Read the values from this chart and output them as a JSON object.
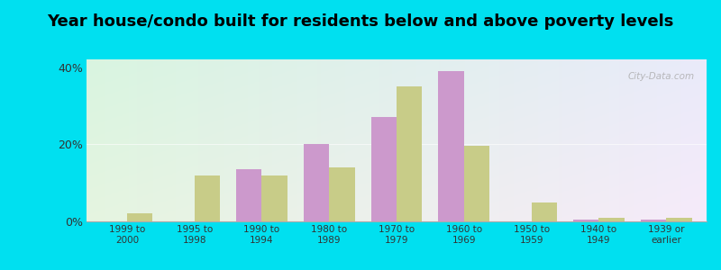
{
  "title": "Year house/condo built for residents below and above poverty levels",
  "categories": [
    "1999 to\n2000",
    "1995 to\n1998",
    "1990 to\n1994",
    "1980 to\n1989",
    "1970 to\n1979",
    "1960 to\n1969",
    "1950 to\n1959",
    "1940 to\n1949",
    "1939 or\nearlier"
  ],
  "below_poverty": [
    0.0,
    0.0,
    13.5,
    20.0,
    27.0,
    39.0,
    0.0,
    0.5,
    0.5
  ],
  "above_poverty": [
    2.0,
    12.0,
    12.0,
    14.0,
    35.0,
    19.5,
    5.0,
    1.0,
    1.0
  ],
  "below_color": "#cc99cc",
  "above_color": "#c8cc88",
  "ylim": [
    0,
    42
  ],
  "yticks": [
    0,
    20,
    40
  ],
  "ytick_labels": [
    "0%",
    "20%",
    "40%"
  ],
  "background_outer": "#00e0f0",
  "bar_width": 0.38,
  "title_fontsize": 13
}
